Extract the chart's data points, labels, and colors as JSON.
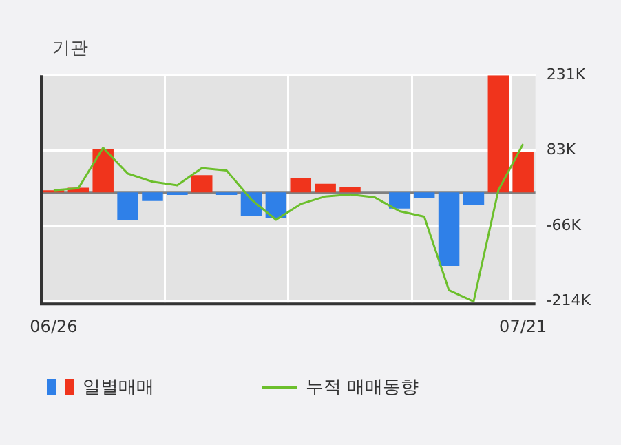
{
  "chart_data": {
    "type": "bar",
    "title": "기관",
    "categories": [
      "06/26",
      null,
      null,
      null,
      null,
      null,
      null,
      null,
      null,
      null,
      null,
      null,
      null,
      null,
      null,
      null,
      null,
      null,
      null,
      "07/21"
    ],
    "series": [
      {
        "name": "일별매매",
        "colors": [
          "#f0341c",
          "#f0341c",
          "#f0341c",
          "#2f80e8",
          "#2f80e8",
          "#2f80e8",
          "#f0341c",
          "#2f80e8",
          "#2f80e8",
          "#2f80e8",
          "#f0341c",
          "#f0341c",
          "#f0341c",
          "#2f80e8",
          "#2f80e8",
          "#2f80e8",
          "#2f80e8",
          "#2f80e8",
          "#f0341c",
          "#f0341c"
        ],
        "values": [
          4,
          9,
          86,
          -55,
          -17,
          -5,
          34,
          -5,
          -46,
          -50,
          29,
          17,
          10,
          null,
          -32,
          -12,
          -145,
          -25,
          231,
          79
        ]
      },
      {
        "name": "누적 매매동향",
        "type": "line",
        "color": "#6cbf2c",
        "values": [
          4,
          8,
          88,
          37,
          21,
          14,
          48,
          43,
          -14,
          -54,
          -23,
          -8,
          -4,
          -10,
          -37,
          -48,
          -193,
          -215,
          4,
          95
        ]
      }
    ],
    "ylim": [
      -220,
      231
    ],
    "yticks": [
      {
        "value": 231,
        "label": "231K"
      },
      {
        "value": 83,
        "label": "83K"
      },
      {
        "value": -66,
        "label": "-66K"
      },
      {
        "value": -214,
        "label": "-214K"
      }
    ],
    "grid": true,
    "legend": "bottom",
    "marker": "none"
  }
}
